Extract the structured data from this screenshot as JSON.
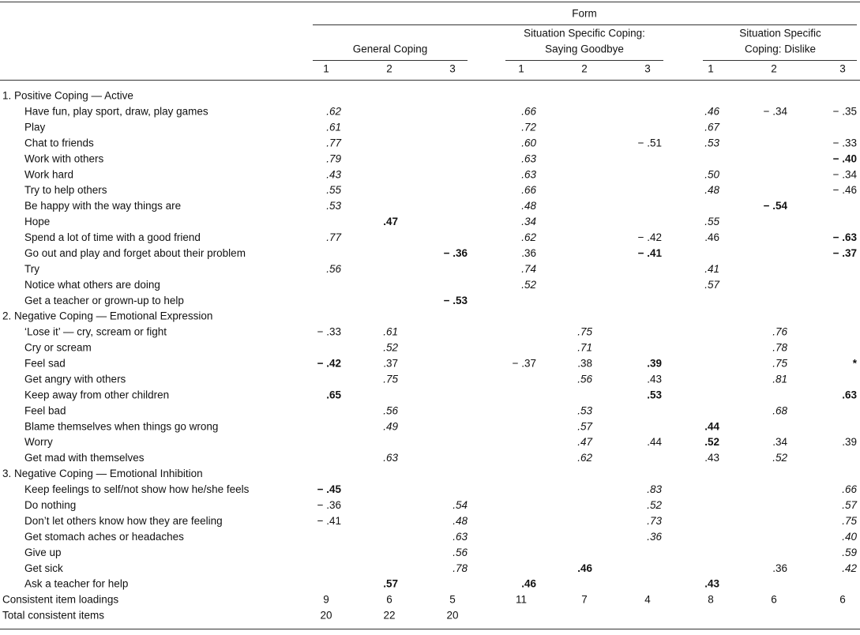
{
  "header": {
    "form": "Form",
    "groups": [
      {
        "lines": [
          "General Coping"
        ]
      },
      {
        "lines": [
          "Situation Specific Coping:",
          "Saying Goodbye"
        ]
      },
      {
        "lines": [
          "Situation Specific",
          "Coping: Dislike"
        ]
      }
    ],
    "columns": [
      "1",
      "2",
      "3",
      "1",
      "2",
      "3",
      "1",
      "2",
      "3"
    ]
  },
  "sections": [
    {
      "title": "1. Positive Coping — Active",
      "rows": [
        {
          "label": "Have fun, play sport, draw, play games",
          "cells": [
            {
              "text": ".62",
              "style": "italic"
            },
            null,
            null,
            {
              "text": ".66",
              "style": "italic"
            },
            null,
            null,
            {
              "text": ".46",
              "style": "italic"
            },
            {
              "text": "− .34",
              "style": "normal"
            },
            {
              "text": "− .35",
              "style": "normal"
            }
          ]
        },
        {
          "label": "Play",
          "cells": [
            {
              "text": ".61",
              "style": "italic"
            },
            null,
            null,
            {
              "text": ".72",
              "style": "italic"
            },
            null,
            null,
            {
              "text": ".67",
              "style": "italic"
            },
            null,
            null
          ]
        },
        {
          "label": "Chat to friends",
          "cells": [
            {
              "text": ".77",
              "style": "italic"
            },
            null,
            null,
            {
              "text": ".60",
              "style": "italic"
            },
            null,
            {
              "text": "− .51",
              "style": "normal"
            },
            {
              "text": ".53",
              "style": "italic"
            },
            null,
            {
              "text": "− .33",
              "style": "normal"
            }
          ]
        },
        {
          "label": "Work with others",
          "cells": [
            {
              "text": ".79",
              "style": "italic"
            },
            null,
            null,
            {
              "text": ".63",
              "style": "italic"
            },
            null,
            null,
            null,
            null,
            {
              "text": "− .40",
              "style": "bold"
            }
          ]
        },
        {
          "label": "Work hard",
          "cells": [
            {
              "text": ".43",
              "style": "italic"
            },
            null,
            null,
            {
              "text": ".63",
              "style": "italic"
            },
            null,
            null,
            {
              "text": ".50",
              "style": "italic"
            },
            null,
            {
              "text": "− .34",
              "style": "normal"
            }
          ]
        },
        {
          "label": "Try to help others",
          "cells": [
            {
              "text": ".55",
              "style": "italic"
            },
            null,
            null,
            {
              "text": ".66",
              "style": "italic"
            },
            null,
            null,
            {
              "text": ".48",
              "style": "italic"
            },
            null,
            {
              "text": "− .46",
              "style": "normal"
            }
          ]
        },
        {
          "label": "Be happy with the way things are",
          "cells": [
            {
              "text": ".53",
              "style": "italic"
            },
            null,
            null,
            {
              "text": ".48",
              "style": "italic"
            },
            null,
            null,
            null,
            {
              "text": "− .54",
              "style": "bold"
            },
            null
          ]
        },
        {
          "label": "Hope",
          "cells": [
            null,
            {
              "text": ".47",
              "style": "bold"
            },
            null,
            {
              "text": ".34",
              "style": "italic"
            },
            null,
            null,
            {
              "text": ".55",
              "style": "italic"
            },
            null,
            null
          ]
        },
        {
          "label": "Spend a lot of time with a good friend",
          "cells": [
            {
              "text": ".77",
              "style": "italic"
            },
            null,
            null,
            {
              "text": ".62",
              "style": "italic"
            },
            null,
            {
              "text": "− .42",
              "style": "normal"
            },
            {
              "text": ".46",
              "style": "normal"
            },
            null,
            {
              "text": "− .63",
              "style": "bold"
            }
          ]
        },
        {
          "label": "Go out and play and forget about their problem",
          "cells": [
            null,
            null,
            {
              "text": "− .36",
              "style": "bold"
            },
            {
              "text": ".36",
              "style": "normal"
            },
            null,
            {
              "text": "− .41",
              "style": "bold"
            },
            null,
            null,
            {
              "text": "− .37",
              "style": "bold"
            }
          ]
        },
        {
          "label": "Try",
          "cells": [
            {
              "text": ".56",
              "style": "italic"
            },
            null,
            null,
            {
              "text": ".74",
              "style": "italic"
            },
            null,
            null,
            {
              "text": ".41",
              "style": "italic"
            },
            null,
            null
          ]
        },
        {
          "label": "Notice what others are doing",
          "cells": [
            null,
            null,
            null,
            {
              "text": ".52",
              "style": "italic"
            },
            null,
            null,
            {
              "text": ".57",
              "style": "italic"
            },
            null,
            null
          ]
        },
        {
          "label": "Get a teacher or grown-up to help",
          "cells": [
            null,
            null,
            {
              "text": "− .53",
              "style": "bold"
            },
            null,
            null,
            null,
            null,
            null,
            null
          ]
        }
      ]
    },
    {
      "title": "2. Negative Coping — Emotional Expression",
      "rows": [
        {
          "label": "‘Lose it’ — cry, scream or fight",
          "cells": [
            {
              "text": "− .33",
              "style": "normal"
            },
            {
              "text": ".61",
              "style": "italic"
            },
            null,
            null,
            {
              "text": ".75",
              "style": "italic"
            },
            null,
            null,
            {
              "text": ".76",
              "style": "italic"
            },
            null
          ]
        },
        {
          "label": "Cry or scream",
          "cells": [
            null,
            {
              "text": ".52",
              "style": "italic"
            },
            null,
            null,
            {
              "text": ".71",
              "style": "italic"
            },
            null,
            null,
            {
              "text": ".78",
              "style": "italic"
            },
            null
          ]
        },
        {
          "label": "Feel sad",
          "cells": [
            {
              "text": "− .42",
              "style": "bold"
            },
            {
              "text": ".37",
              "style": "normal"
            },
            null,
            {
              "text": "− .37",
              "style": "normal"
            },
            {
              "text": ".38",
              "style": "normal"
            },
            {
              "text": ".39",
              "style": "bold"
            },
            null,
            {
              "text": ".75",
              "style": "italic"
            },
            {
              "text": "*",
              "style": "bold"
            }
          ]
        },
        {
          "label": "Get angry with others",
          "cells": [
            null,
            {
              "text": ".75",
              "style": "italic"
            },
            null,
            null,
            {
              "text": ".56",
              "style": "italic"
            },
            {
              "text": ".43",
              "style": "normal"
            },
            null,
            {
              "text": ".81",
              "style": "italic"
            },
            null
          ]
        },
        {
          "label": "Keep away from other children",
          "cells": [
            {
              "text": ".65",
              "style": "bold"
            },
            null,
            null,
            null,
            null,
            {
              "text": ".53",
              "style": "bold"
            },
            null,
            null,
            {
              "text": ".63",
              "style": "bold"
            }
          ]
        },
        {
          "label": "Feel bad",
          "cells": [
            null,
            {
              "text": ".56",
              "style": "italic"
            },
            null,
            null,
            {
              "text": ".53",
              "style": "italic"
            },
            null,
            null,
            {
              "text": ".68",
              "style": "italic"
            },
            null
          ]
        },
        {
          "label": "Blame themselves when things go wrong",
          "cells": [
            null,
            {
              "text": ".49",
              "style": "italic"
            },
            null,
            null,
            {
              "text": ".57",
              "style": "italic"
            },
            null,
            {
              "text": ".44",
              "style": "bold"
            },
            null,
            null
          ]
        },
        {
          "label": "Worry",
          "cells": [
            null,
            null,
            null,
            null,
            {
              "text": ".47",
              "style": "italic"
            },
            {
              "text": ".44",
              "style": "normal"
            },
            {
              "text": ".52",
              "style": "bold"
            },
            {
              "text": ".34",
              "style": "normal"
            },
            {
              "text": ".39",
              "style": "normal"
            }
          ]
        },
        {
          "label": "Get mad with themselves",
          "cells": [
            null,
            {
              "text": ".63",
              "style": "italic"
            },
            null,
            null,
            {
              "text": ".62",
              "style": "italic"
            },
            null,
            {
              "text": ".43",
              "style": "normal"
            },
            {
              "text": ".52",
              "style": "italic"
            },
            null
          ]
        }
      ]
    },
    {
      "title": "3. Negative Coping — Emotional Inhibition",
      "rows": [
        {
          "label": "Keep feelings to self/not show how he/she feels",
          "cells": [
            {
              "text": "− .45",
              "style": "bold"
            },
            null,
            null,
            null,
            null,
            {
              "text": ".83",
              "style": "italic"
            },
            null,
            null,
            {
              "text": ".66",
              "style": "italic"
            }
          ]
        },
        {
          "label": "Do nothing",
          "cells": [
            {
              "text": "− .36",
              "style": "normal"
            },
            null,
            {
              "text": ".54",
              "style": "italic"
            },
            null,
            null,
            {
              "text": ".52",
              "style": "italic"
            },
            null,
            null,
            {
              "text": ".57",
              "style": "italic"
            }
          ]
        },
        {
          "label": "Don’t let others know how they are feeling",
          "cells": [
            {
              "text": "− .41",
              "style": "normal"
            },
            null,
            {
              "text": ".48",
              "style": "italic"
            },
            null,
            null,
            {
              "text": ".73",
              "style": "italic"
            },
            null,
            null,
            {
              "text": ".75",
              "style": "italic"
            }
          ]
        },
        {
          "label": "Get stomach aches or headaches",
          "cells": [
            null,
            null,
            {
              "text": ".63",
              "style": "italic"
            },
            null,
            null,
            {
              "text": ".36",
              "style": "italic"
            },
            null,
            null,
            {
              "text": ".40",
              "style": "italic"
            }
          ]
        },
        {
          "label": "Give up",
          "cells": [
            null,
            null,
            {
              "text": ".56",
              "style": "italic"
            },
            null,
            null,
            null,
            null,
            null,
            {
              "text": ".59",
              "style": "italic"
            }
          ]
        },
        {
          "label": "Get sick",
          "cells": [
            null,
            null,
            {
              "text": ".78",
              "style": "italic"
            },
            null,
            {
              "text": ".46",
              "style": "bold"
            },
            null,
            null,
            {
              "text": ".36",
              "style": "normal"
            },
            {
              "text": ".42",
              "style": "italic"
            }
          ]
        },
        {
          "label": "Ask a teacher for help",
          "cells": [
            null,
            {
              "text": ".57",
              "style": "bold"
            },
            null,
            {
              "text": ".46",
              "style": "bold"
            },
            null,
            null,
            {
              "text": ".43",
              "style": "bold"
            },
            null,
            null
          ]
        }
      ]
    }
  ],
  "summary": [
    {
      "label": "Consistent item loadings",
      "cells": [
        9,
        6,
        5,
        11,
        7,
        4,
        8,
        6,
        6
      ]
    },
    {
      "label": "Total consistent items",
      "cells": [
        20,
        22,
        20,
        null,
        null,
        null,
        null,
        null,
        null
      ]
    }
  ]
}
